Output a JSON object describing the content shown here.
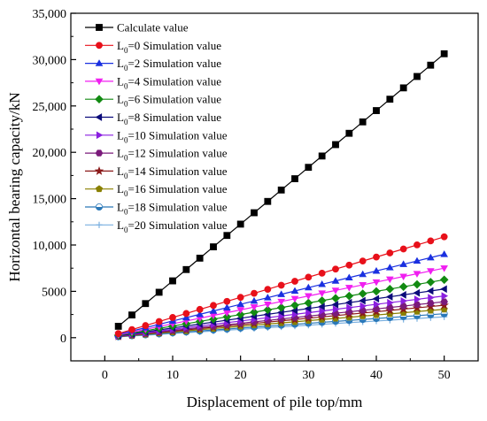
{
  "chart_data": {
    "type": "line",
    "title": "",
    "xlabel": "Displacement of pile top/mm",
    "ylabel": "Horizontal bearing capacity/kN",
    "xlim": [
      -5,
      55
    ],
    "ylim": [
      -2500,
      35000
    ],
    "xticks": [
      0,
      10,
      20,
      30,
      40,
      50
    ],
    "xtick_labels": [
      "0",
      "10",
      "20",
      "30",
      "40",
      "50"
    ],
    "yticks": [
      0,
      5000,
      10000,
      15000,
      20000,
      25000,
      30000,
      35000
    ],
    "ytick_labels": [
      "0",
      "5000",
      "10,000",
      "15,000",
      "20,000",
      "25,000",
      "30,000",
      "35,000"
    ],
    "grid": false,
    "legend_position": "top-left",
    "x": [
      2,
      4,
      6,
      8,
      10,
      12,
      14,
      16,
      18,
      20,
      22,
      24,
      26,
      28,
      30,
      32,
      34,
      36,
      38,
      40,
      42,
      44,
      46,
      48,
      50
    ],
    "series": [
      {
        "name": "Calculate value",
        "label_main": "Calculate value",
        "label_sub": "",
        "label_rest": "",
        "color": "#000000",
        "marker": "square",
        "values": [
          1230,
          2450,
          3680,
          4900,
          6130,
          7350,
          8580,
          9800,
          11030,
          12250,
          13480,
          14700,
          15930,
          17150,
          18380,
          19600,
          20830,
          22050,
          23280,
          24500,
          25730,
          26950,
          28180,
          29400,
          30630
        ]
      },
      {
        "name": "L0=0 Simulation value",
        "label_main": "L",
        "label_sub": "0",
        "label_rest": "=0 Simulation value",
        "color": "#e8101a",
        "marker": "circle",
        "values": [
          440,
          870,
          1310,
          1740,
          2180,
          2610,
          3050,
          3480,
          3920,
          4350,
          4790,
          5220,
          5660,
          6090,
          6530,
          6960,
          7400,
          7830,
          8270,
          8700,
          9140,
          9570,
          10010,
          10440,
          10880
        ]
      },
      {
        "name": "L0=2 Simulation value",
        "label_main": "L",
        "label_sub": "0",
        "label_rest": "=2 Simulation value",
        "color": "#1a30e0",
        "marker": "triangle-up",
        "values": [
          360,
          720,
          1080,
          1440,
          1800,
          2160,
          2520,
          2880,
          3240,
          3600,
          3960,
          4320,
          4680,
          5040,
          5400,
          5760,
          6120,
          6480,
          6840,
          7200,
          7560,
          7920,
          8280,
          8640,
          9000
        ]
      },
      {
        "name": "L0=4 Simulation value",
        "label_main": "L",
        "label_sub": "0",
        "label_rest": "=4 Simulation value",
        "color": "#f01ef0",
        "marker": "triangle-down",
        "values": [
          300,
          600,
          900,
          1200,
          1500,
          1800,
          2100,
          2400,
          2700,
          3000,
          3300,
          3600,
          3900,
          4200,
          4500,
          4800,
          5100,
          5400,
          5700,
          6000,
          6300,
          6600,
          6900,
          7200,
          7500
        ]
      },
      {
        "name": "L0=6 Simulation value",
        "label_main": "L",
        "label_sub": "0",
        "label_rest": "=6 Simulation value",
        "color": "#128a12",
        "marker": "diamond",
        "values": [
          250,
          500,
          750,
          1000,
          1250,
          1500,
          1750,
          2000,
          2250,
          2500,
          2750,
          3000,
          3250,
          3500,
          3750,
          4000,
          4250,
          4500,
          4750,
          5000,
          5250,
          5500,
          5750,
          6000,
          6250
        ]
      },
      {
        "name": "L0=8 Simulation value",
        "label_main": "L",
        "label_sub": "0",
        "label_rest": "=8 Simulation value",
        "color": "#0b0b7a",
        "marker": "triangle-left",
        "values": [
          210,
          420,
          630,
          840,
          1050,
          1260,
          1470,
          1680,
          1890,
          2100,
          2310,
          2520,
          2730,
          2940,
          3150,
          3360,
          3570,
          3780,
          3990,
          4200,
          4410,
          4620,
          4830,
          5040,
          5250
        ]
      },
      {
        "name": "L0=10 Simulation value",
        "label_main": "L",
        "label_sub": "0",
        "label_rest": "=10 Simulation value",
        "color": "#8a1ee0",
        "marker": "triangle-right",
        "values": [
          180,
          360,
          540,
          720,
          900,
          1080,
          1260,
          1440,
          1620,
          1800,
          1980,
          2160,
          2340,
          2520,
          2700,
          2880,
          3060,
          3240,
          3420,
          3600,
          3780,
          3960,
          4140,
          4320,
          4500
        ]
      },
      {
        "name": "L0=12 Simulation value",
        "label_main": "L",
        "label_sub": "0",
        "label_rest": "=12 Simulation value",
        "color": "#7a1a7a",
        "marker": "hexagon",
        "values": [
          155,
          310,
          470,
          620,
          780,
          930,
          1090,
          1240,
          1400,
          1550,
          1710,
          1860,
          2020,
          2170,
          2330,
          2480,
          2640,
          2790,
          2950,
          3100,
          3260,
          3410,
          3570,
          3720,
          3880
        ]
      },
      {
        "name": "L0=14 Simulation value",
        "label_main": "L",
        "label_sub": "0",
        "label_rest": "=14 Simulation value",
        "color": "#8b1a1a",
        "marker": "star",
        "values": [
          140,
          280,
          420,
          560,
          700,
          840,
          980,
          1120,
          1260,
          1400,
          1540,
          1680,
          1820,
          1960,
          2100,
          2240,
          2380,
          2520,
          2660,
          2800,
          2940,
          3080,
          3220,
          3360,
          3500
        ]
      },
      {
        "name": "L0=16 Simulation value",
        "label_main": "L",
        "label_sub": "0",
        "label_rest": "=16 Simulation value",
        "color": "#8a8000",
        "marker": "pentagon",
        "values": [
          120,
          245,
          365,
          490,
          610,
          730,
          860,
          980,
          1100,
          1220,
          1350,
          1470,
          1590,
          1710,
          1840,
          1960,
          2080,
          2200,
          2330,
          2450,
          2570,
          2690,
          2820,
          2940,
          3060
        ]
      },
      {
        "name": "L0=18 Simulation value",
        "label_main": "L",
        "label_sub": "0",
        "label_rest": "=18 Simulation value",
        "color": "#2a78b8",
        "marker": "circle-half",
        "values": [
          105,
          210,
          310,
          415,
          520,
          620,
          725,
          830,
          930,
          1035,
          1140,
          1240,
          1345,
          1450,
          1550,
          1655,
          1760,
          1860,
          1965,
          2070,
          2170,
          2275,
          2380,
          2480,
          2585
        ]
      },
      {
        "name": "L0=20 Simulation value",
        "label_main": "L",
        "label_sub": "0",
        "label_rest": "=20 Simulation value",
        "color": "#7ab0e0",
        "marker": "plus",
        "values": [
          90,
          180,
          270,
          360,
          450,
          540,
          630,
          720,
          810,
          900,
          990,
          1080,
          1170,
          1260,
          1350,
          1440,
          1530,
          1620,
          1710,
          1800,
          1890,
          1980,
          2070,
          2160,
          2250
        ]
      }
    ]
  }
}
